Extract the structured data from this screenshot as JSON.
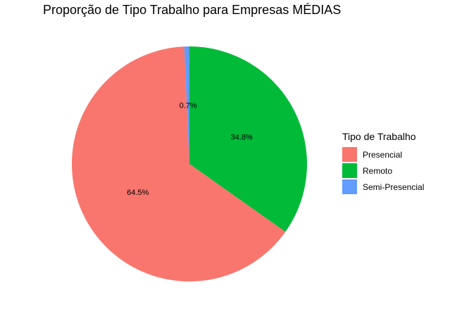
{
  "chart_data": {
    "type": "pie",
    "title": "Proporção de Tipo Trabalho para Empresas MÉDIAS",
    "legend_title": "Tipo de Trabalho",
    "legend_position": "right",
    "slices": [
      {
        "label": "Presencial",
        "value": 64.5,
        "value_label": "64.5%",
        "color": "#F8766D"
      },
      {
        "label": "Remoto",
        "value": 34.8,
        "value_label": "34.8%",
        "color": "#00BA38"
      },
      {
        "label": "Semi-Presencial",
        "value": 0.7,
        "value_label": "0.7%",
        "color": "#619CFF"
      }
    ]
  }
}
